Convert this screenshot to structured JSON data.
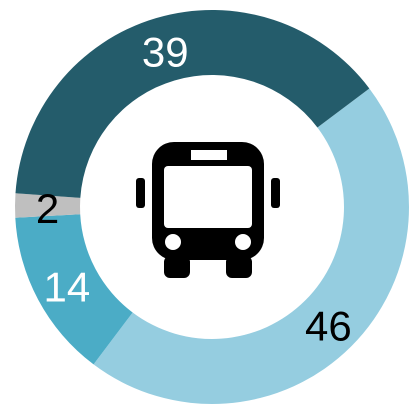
{
  "chart_data": {
    "type": "donut",
    "values": [
      46,
      14,
      2,
      39
    ],
    "colors": [
      "#95cde0",
      "#4bacc6",
      "#bfbfbf",
      "#245c6b"
    ]
  }
}
